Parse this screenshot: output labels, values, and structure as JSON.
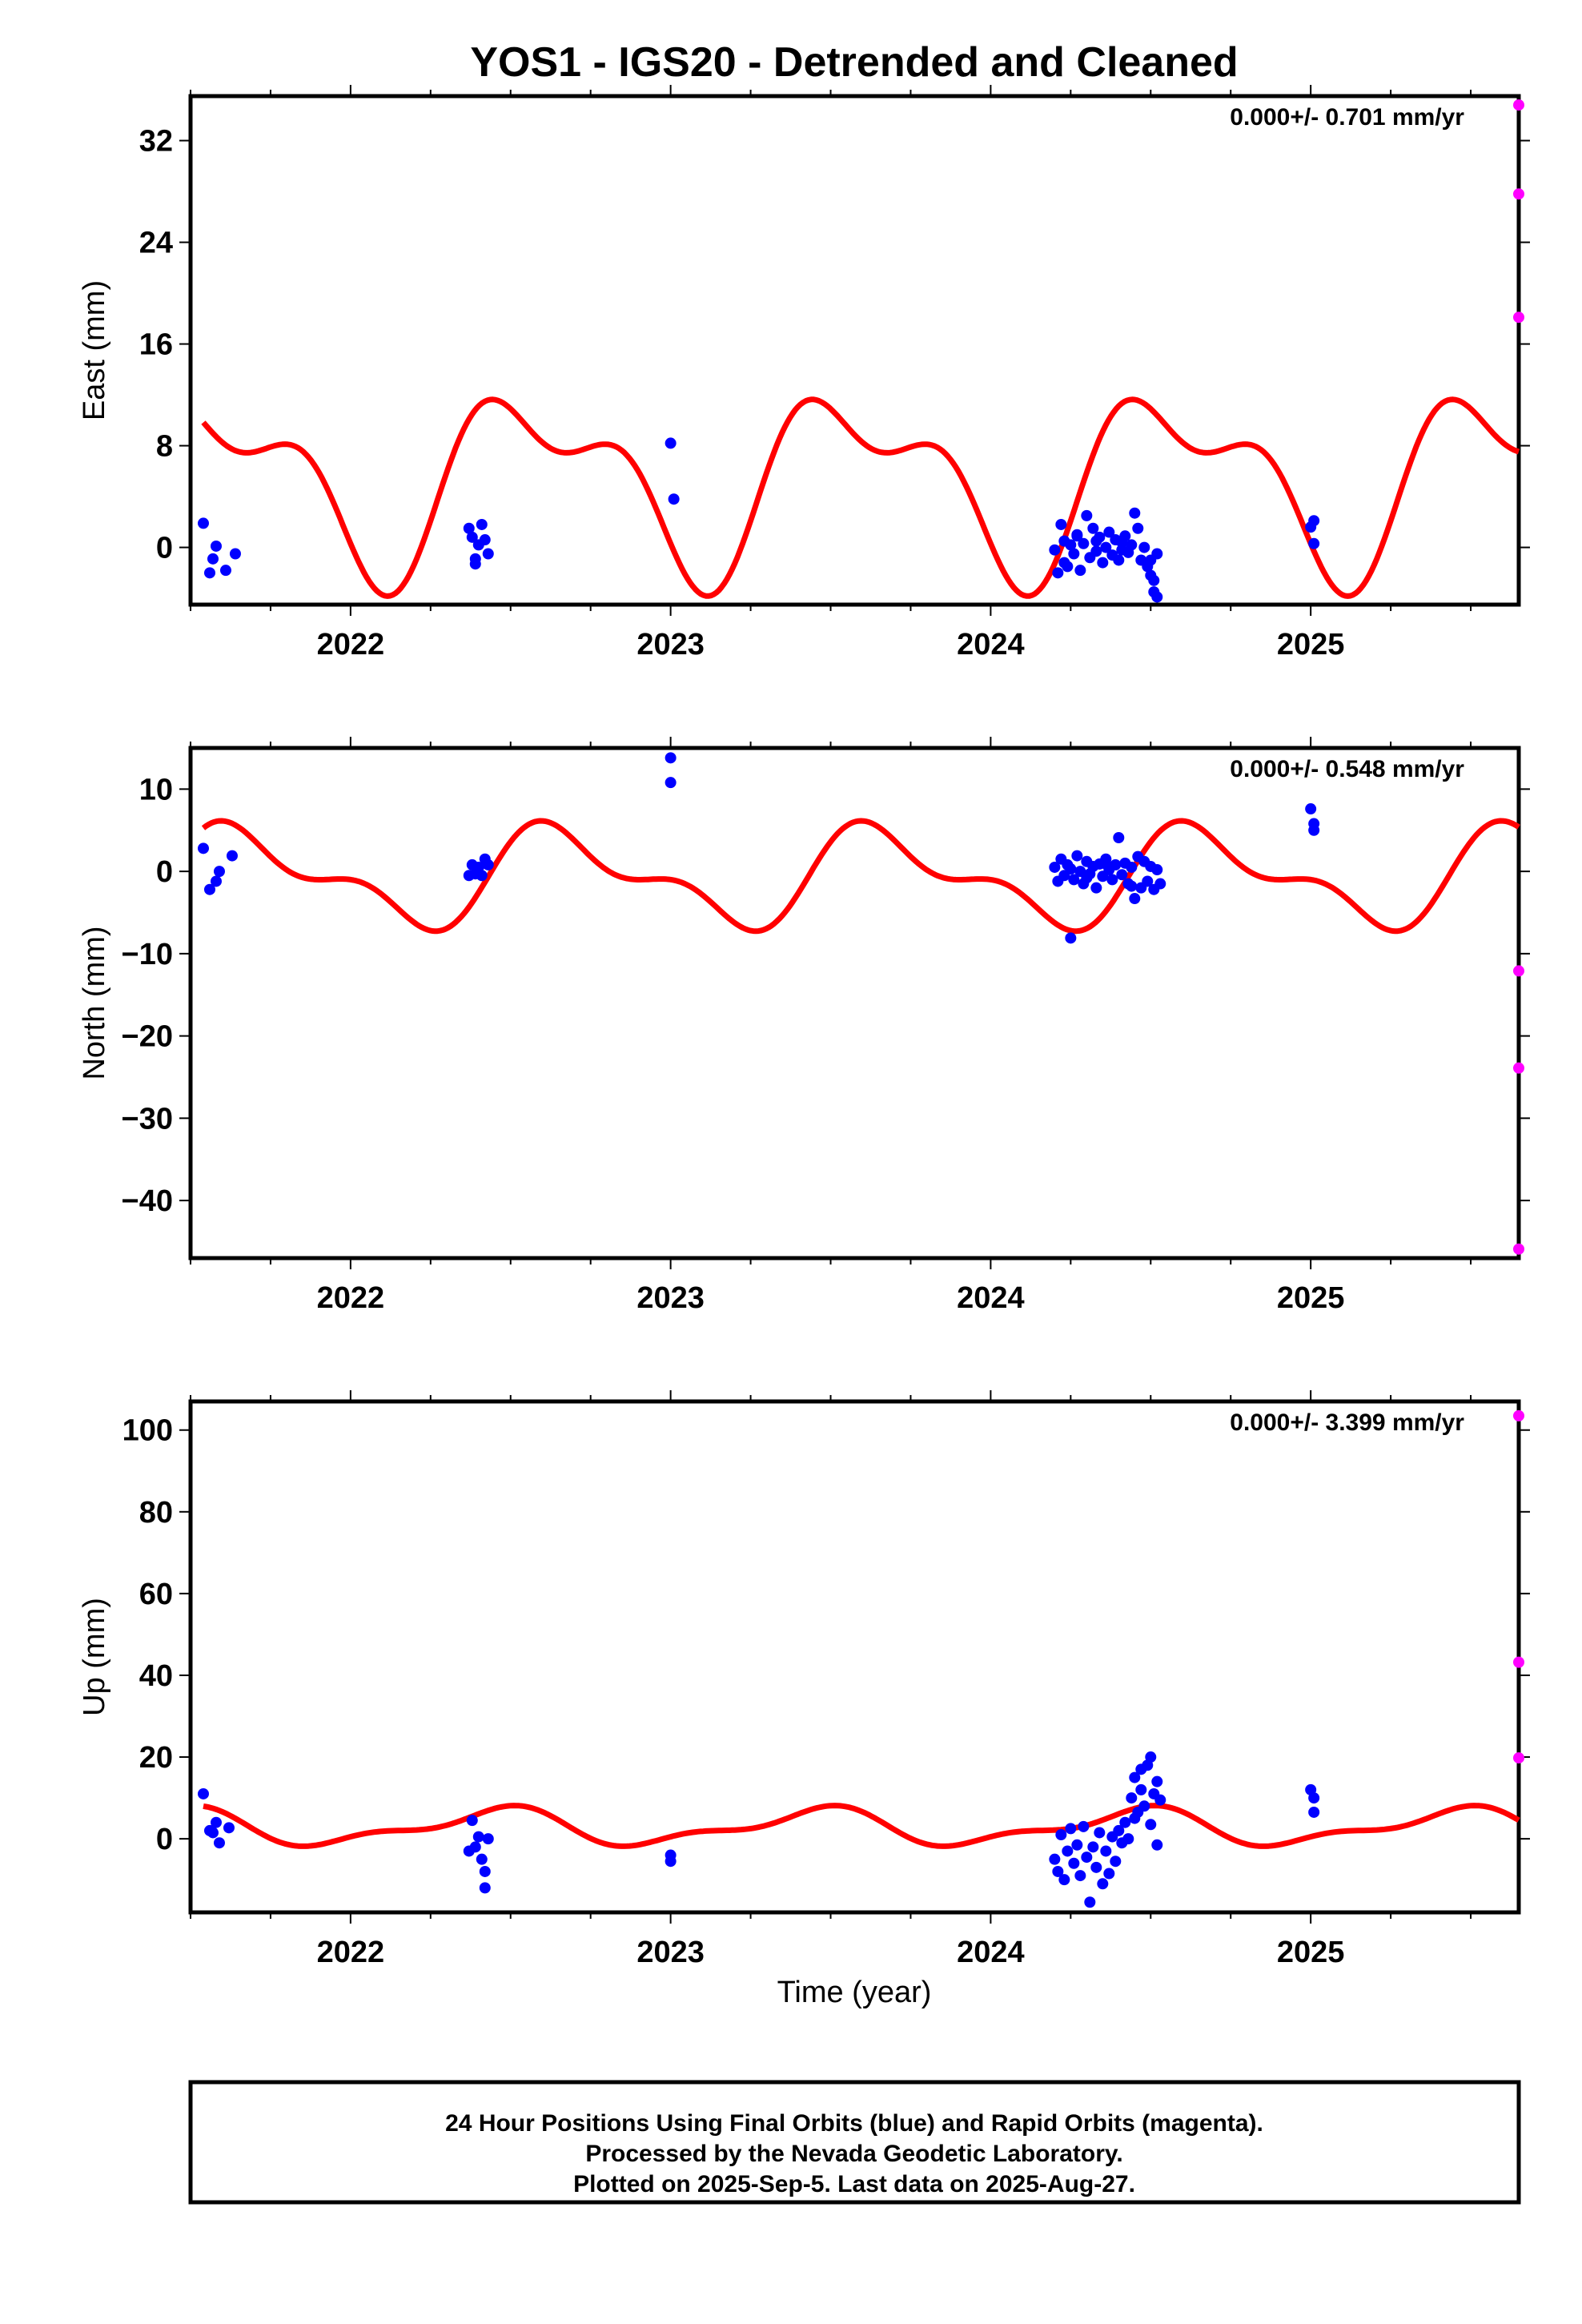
{
  "title": "YOS1 - IGS20 - Detrended and Cleaned",
  "xlabel": "Time (year)",
  "caption": [
    "24 Hour Positions Using Final Orbits (blue) and Rapid Orbits (magenta).",
    "Processed by the Nevada Geodetic Laboratory.",
    "Plotted on 2025-Sep-5. Last data on 2025-Aug-27."
  ],
  "colors": {
    "final": "#0000ff",
    "rapid": "#ff00ff",
    "model": "#ff0000",
    "frame": "#000000"
  },
  "chart_data": [
    {
      "type": "scatter",
      "ylabel": "East (mm)",
      "rate_label": "0.000+/- 0.701 mm/yr",
      "xlim": [
        2021.5,
        2025.65
      ],
      "ylim": [
        -4.5,
        35.5
      ],
      "yticks": [
        0,
        8,
        16,
        24,
        32
      ],
      "ytick_labels": [
        "0",
        "8",
        "16",
        "24",
        "32"
      ],
      "xticks": [
        2022,
        2023,
        2024,
        2025
      ],
      "xtick_labels": [
        "2022",
        "2023",
        "2024",
        "2025"
      ],
      "grid": false,
      "model": {
        "mean": 5.3,
        "annual_cos": -5.3,
        "annual_sin": -2.9,
        "semi_cos": 0.3,
        "semi_sin": -3.3
      },
      "final": [
        [
          2021.54,
          1.9
        ],
        [
          2021.56,
          -2.0
        ],
        [
          2021.57,
          -0.9
        ],
        [
          2021.58,
          0.1
        ],
        [
          2021.61,
          -1.8
        ],
        [
          2021.64,
          -0.5
        ],
        [
          2022.37,
          1.5
        ],
        [
          2022.38,
          0.8
        ],
        [
          2022.39,
          -0.9
        ],
        [
          2022.39,
          -1.3
        ],
        [
          2022.4,
          0.2
        ],
        [
          2022.41,
          1.8
        ],
        [
          2022.42,
          0.6
        ],
        [
          2022.43,
          -0.5
        ],
        [
          2023.0,
          8.2
        ],
        [
          2023.01,
          3.8
        ],
        [
          2024.2,
          -0.2
        ],
        [
          2024.21,
          -2.0
        ],
        [
          2024.22,
          1.8
        ],
        [
          2024.23,
          0.5
        ],
        [
          2024.24,
          -1.5
        ],
        [
          2024.25,
          0.2
        ],
        [
          2024.26,
          -0.5
        ],
        [
          2024.27,
          1.0
        ],
        [
          2024.28,
          -1.8
        ],
        [
          2024.29,
          0.3
        ],
        [
          2024.3,
          2.5
        ],
        [
          2024.31,
          -0.8
        ],
        [
          2024.32,
          1.5
        ],
        [
          2024.33,
          -0.3
        ],
        [
          2024.34,
          0.8
        ],
        [
          2024.35,
          -1.2
        ],
        [
          2024.36,
          0.0
        ],
        [
          2024.37,
          1.2
        ],
        [
          2024.38,
          -0.6
        ],
        [
          2024.39,
          0.6
        ],
        [
          2024.4,
          -1.0
        ],
        [
          2024.41,
          0.4
        ],
        [
          2024.42,
          0.9
        ],
        [
          2024.43,
          -0.4
        ],
        [
          2024.44,
          0.2
        ],
        [
          2024.45,
          2.7
        ],
        [
          2024.46,
          1.5
        ],
        [
          2024.47,
          -1.0
        ],
        [
          2024.48,
          0.0
        ],
        [
          2024.49,
          -1.5
        ],
        [
          2024.5,
          -2.2
        ],
        [
          2024.5,
          -1.0
        ],
        [
          2024.51,
          -2.6
        ],
        [
          2024.51,
          -3.5
        ],
        [
          2024.52,
          -3.9
        ],
        [
          2024.52,
          -0.5
        ],
        [
          2024.23,
          -1.2
        ],
        [
          2024.27,
          0.9
        ],
        [
          2024.33,
          0.5
        ],
        [
          2024.41,
          -0.2
        ],
        [
          2025.0,
          1.6
        ],
        [
          2025.01,
          0.3
        ],
        [
          2025.01,
          2.1
        ]
      ],
      "rapid": [
        [
          2025.65,
          34.8
        ],
        [
          2025.65,
          27.8
        ],
        [
          2025.65,
          18.1
        ]
      ]
    },
    {
      "type": "scatter",
      "ylabel": "North (mm)",
      "rate_label": "0.000+/- 0.548 mm/yr",
      "xlim": [
        2021.5,
        2025.65
      ],
      "ylim": [
        -47,
        15
      ],
      "yticks": [
        -40,
        -30,
        -20,
        -10,
        0,
        10
      ],
      "ytick_labels": [
        "−40",
        "−30",
        "−20",
        "−10",
        "0",
        "10"
      ],
      "xticks": [
        2022,
        2023,
        2024,
        2025
      ],
      "xtick_labels": [
        "2022",
        "2023",
        "2024",
        "2025"
      ],
      "grid": false,
      "model": {
        "mean": -0.7,
        "annual_cos": -2.3,
        "annual_sin": -4.5,
        "semi_cos": 2.0,
        "semi_sin": 1.8
      },
      "final": [
        [
          2021.54,
          2.8
        ],
        [
          2021.56,
          -2.2
        ],
        [
          2021.58,
          -1.2
        ],
        [
          2021.59,
          0.0
        ],
        [
          2021.63,
          1.9
        ],
        [
          2022.37,
          -0.5
        ],
        [
          2022.38,
          0.8
        ],
        [
          2022.39,
          -0.3
        ],
        [
          2022.4,
          0.5
        ],
        [
          2022.41,
          -0.5
        ],
        [
          2022.42,
          1.5
        ],
        [
          2022.43,
          0.8
        ],
        [
          2023.0,
          13.8
        ],
        [
          2023.0,
          10.8
        ],
        [
          2024.2,
          0.5
        ],
        [
          2024.21,
          -1.2
        ],
        [
          2024.22,
          1.5
        ],
        [
          2024.23,
          -0.5
        ],
        [
          2024.24,
          0.8
        ],
        [
          2024.25,
          -8.1
        ],
        [
          2024.25,
          0.3
        ],
        [
          2024.26,
          -1.0
        ],
        [
          2024.27,
          1.9
        ],
        [
          2024.28,
          0.0
        ],
        [
          2024.29,
          -1.5
        ],
        [
          2024.3,
          1.2
        ],
        [
          2024.31,
          -0.3
        ],
        [
          2024.32,
          0.6
        ],
        [
          2024.33,
          -2.0
        ],
        [
          2024.34,
          0.9
        ],
        [
          2024.35,
          -0.6
        ],
        [
          2024.36,
          1.5
        ],
        [
          2024.37,
          0.2
        ],
        [
          2024.38,
          -1.0
        ],
        [
          2024.39,
          0.8
        ],
        [
          2024.4,
          4.1
        ],
        [
          2024.41,
          -0.4
        ],
        [
          2024.42,
          1.0
        ],
        [
          2024.43,
          -1.5
        ],
        [
          2024.44,
          0.5
        ],
        [
          2024.45,
          -3.3
        ],
        [
          2024.46,
          1.8
        ],
        [
          2024.47,
          -2.0
        ],
        [
          2024.48,
          1.2
        ],
        [
          2024.49,
          -1.2
        ],
        [
          2024.5,
          0.6
        ],
        [
          2024.51,
          -2.2
        ],
        [
          2024.52,
          0.2
        ],
        [
          2024.53,
          -1.5
        ],
        [
          2024.3,
          -0.8
        ],
        [
          2024.36,
          0.9
        ],
        [
          2024.44,
          -1.8
        ],
        [
          2025.0,
          7.6
        ],
        [
          2025.01,
          5.8
        ],
        [
          2025.01,
          5.0
        ]
      ],
      "rapid": [
        [
          2025.65,
          -12.1
        ],
        [
          2025.65,
          -23.9
        ],
        [
          2025.65,
          -45.9
        ]
      ]
    },
    {
      "type": "scatter",
      "ylabel": "Up (mm)",
      "rate_label": "0.000+/- 3.399 mm/yr",
      "xlim": [
        2021.5,
        2025.65
      ],
      "ylim": [
        -18,
        107
      ],
      "yticks": [
        0,
        20,
        40,
        60,
        80,
        100
      ],
      "ytick_labels": [
        "0",
        "20",
        "40",
        "60",
        "80",
        "100"
      ],
      "xticks": [
        2022,
        2023,
        2024,
        2025
      ],
      "xtick_labels": [
        "2022",
        "2023",
        "2024",
        "2025"
      ],
      "grid": false,
      "model": {
        "mean": 2.8,
        "annual_cos": -3.8,
        "annual_sin": 1.2,
        "semi_cos": 1.5,
        "semi_sin": 1.0
      },
      "final": [
        [
          2021.54,
          11.0
        ],
        [
          2021.56,
          2.0
        ],
        [
          2021.57,
          1.5
        ],
        [
          2021.58,
          4.0
        ],
        [
          2021.59,
          -1.0
        ],
        [
          2021.62,
          2.7
        ],
        [
          2022.37,
          -3.0
        ],
        [
          2022.38,
          4.5
        ],
        [
          2022.39,
          -2.0
        ],
        [
          2022.4,
          0.5
        ],
        [
          2022.41,
          -5.0
        ],
        [
          2022.42,
          -8.0
        ],
        [
          2022.42,
          -12.0
        ],
        [
          2022.43,
          0.0
        ],
        [
          2023.0,
          -4.0
        ],
        [
          2023.0,
          -5.5
        ],
        [
          2024.2,
          -5.0
        ],
        [
          2024.21,
          -8.0
        ],
        [
          2024.22,
          1.0
        ],
        [
          2024.23,
          -10.0
        ],
        [
          2024.24,
          -3.0
        ],
        [
          2024.25,
          2.5
        ],
        [
          2024.26,
          -6.0
        ],
        [
          2024.27,
          -1.5
        ],
        [
          2024.28,
          -9.0
        ],
        [
          2024.29,
          3.0
        ],
        [
          2024.3,
          -4.5
        ],
        [
          2024.31,
          -15.5
        ],
        [
          2024.32,
          -2.0
        ],
        [
          2024.33,
          -7.0
        ],
        [
          2024.34,
          1.5
        ],
        [
          2024.35,
          -11.0
        ],
        [
          2024.36,
          -3.0
        ],
        [
          2024.37,
          -8.5
        ],
        [
          2024.38,
          0.5
        ],
        [
          2024.39,
          -5.5
        ],
        [
          2024.4,
          2.0
        ],
        [
          2024.41,
          -1.0
        ],
        [
          2024.42,
          4.0
        ],
        [
          2024.43,
          0.0
        ],
        [
          2024.44,
          10.0
        ],
        [
          2024.45,
          15.0
        ],
        [
          2024.46,
          6.5
        ],
        [
          2024.47,
          12.0
        ],
        [
          2024.48,
          8.0
        ],
        [
          2024.49,
          18.0
        ],
        [
          2024.5,
          20.0
        ],
        [
          2024.5,
          3.5
        ],
        [
          2024.51,
          11.0
        ],
        [
          2024.52,
          14.0
        ],
        [
          2024.52,
          -1.5
        ],
        [
          2024.53,
          9.5
        ],
        [
          2024.47,
          17.0
        ],
        [
          2024.45,
          5.0
        ],
        [
          2025.0,
          12.0
        ],
        [
          2025.01,
          10.0
        ],
        [
          2025.01,
          6.5
        ]
      ],
      "rapid": [
        [
          2025.65,
          103.5
        ],
        [
          2025.65,
          43.2
        ],
        [
          2025.65,
          19.8
        ]
      ]
    }
  ]
}
